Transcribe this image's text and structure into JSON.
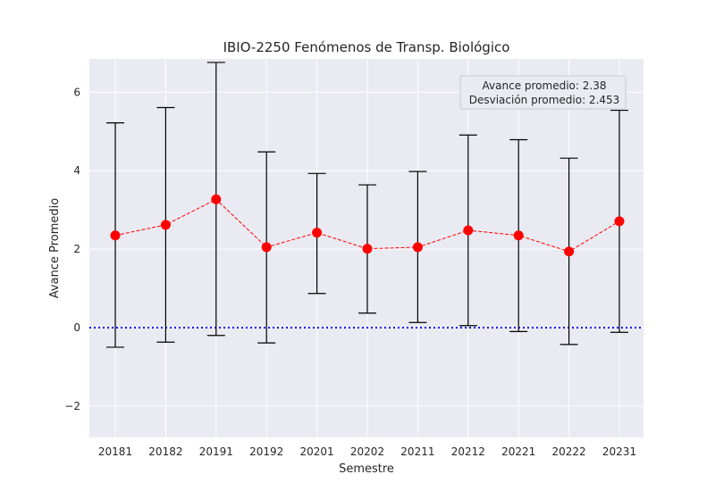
{
  "chart_data": {
    "type": "line",
    "title": "IBIO-2250 Fenómenos de Transp. Biológico",
    "xlabel": "Semestre",
    "ylabel": "Avance Promedio",
    "categories": [
      "20181",
      "20182",
      "20191",
      "20192",
      "20201",
      "20202",
      "20211",
      "20212",
      "20221",
      "20222",
      "20231"
    ],
    "series": [
      {
        "name": "Avance promedio",
        "values": [
          2.35,
          2.62,
          3.27,
          2.05,
          2.42,
          2.01,
          2.05,
          2.48,
          2.35,
          1.94,
          2.71
        ],
        "err_low": [
          -0.5,
          -0.37,
          -0.2,
          -0.39,
          0.87,
          0.37,
          0.13,
          0.05,
          -0.1,
          -0.43,
          -0.12
        ],
        "err_high": [
          5.22,
          5.61,
          6.76,
          4.48,
          3.93,
          3.64,
          3.98,
          4.91,
          4.79,
          4.32,
          5.54
        ]
      }
    ],
    "reference_line": {
      "y": 0,
      "style": "dotted",
      "color": "#0000ff"
    },
    "ylim": [
      -2.8,
      6.85
    ],
    "yticks": [
      -2,
      0,
      2,
      4,
      6
    ],
    "ytick_labels": [
      "−2",
      "0",
      "2",
      "4",
      "6"
    ],
    "grid": true,
    "annotation": {
      "lines": [
        "Avance promedio: 2.38",
        "Desviación promedio: 2.453"
      ],
      "placement": "top-right"
    },
    "colors": {
      "marker": "#ff0000",
      "line": "#ff0000",
      "errorbar": "#000000",
      "plot_bg": "#eaeaf2",
      "grid": "#ffffff"
    }
  }
}
